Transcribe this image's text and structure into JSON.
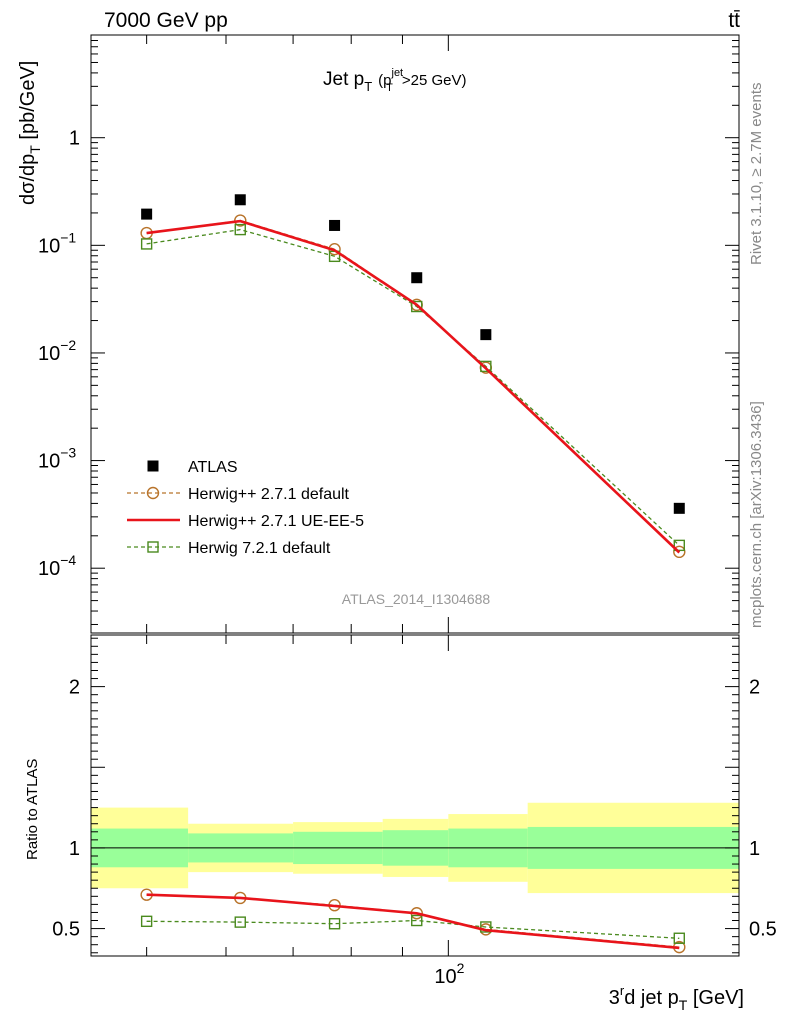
{
  "header": {
    "left": "7000 GeV pp",
    "right": "tt̄"
  },
  "side": {
    "rivet": "Rivet 3.1.10, ≥ 2.7M events",
    "mcplots": "mcplots.cern.ch [arXiv:1306.3436]"
  },
  "watermark": "ATLAS_2014_I1304688",
  "colors": {
    "data": "#000000",
    "herwig_default": "#b8732a",
    "herwig_ueee5": "#e8141b",
    "herwig72": "#4a8a1e",
    "band_inner": "#99ff99",
    "band_outer": "#ffff99"
  },
  "chart_data": [
    {
      "type": "scatter",
      "panel": "main",
      "title": "Jet p_T (p_T^jet>25 GeV)",
      "title_parts": {
        "main": "Jet p",
        "sub": "T",
        "paren_open": "(p",
        "sup": "jet",
        "sub2": "T",
        "rest": ">25 GeV)"
      },
      "ylabel": "dσ/dp_T [pb/GeV]",
      "ylabel_parts": {
        "main": "dσ/dp",
        "sub": "T",
        "rest": " [pb/GeV]"
      },
      "xscale": "log",
      "yscale": "log",
      "xlim": [
        44,
        195
      ],
      "ylim": [
        2.5e-05,
        9
      ],
      "yticks": [
        {
          "value": 1,
          "label": "1"
        },
        {
          "value": 0.1,
          "label": "10",
          "exp": "−1"
        },
        {
          "value": 0.01,
          "label": "10",
          "exp": "−2"
        },
        {
          "value": 0.001,
          "label": "10",
          "exp": "−3"
        },
        {
          "value": 0.0001,
          "label": "10",
          "exp": "−4"
        }
      ],
      "legend_position": "bottom-left",
      "series": [
        {
          "name": "ATLAS",
          "style": "data",
          "x": [
            50,
            62,
            77,
            93,
            109,
            170
          ],
          "y": [
            0.195,
            0.265,
            0.153,
            0.05,
            0.0148,
            0.00036
          ]
        },
        {
          "name": "Herwig++ 2.7.1 default",
          "style": "dashed-circle",
          "x": [
            50,
            62,
            77,
            93,
            109,
            170
          ],
          "y": [
            0.13,
            0.17,
            0.092,
            0.028,
            0.0073,
            0.000142
          ]
        },
        {
          "name": "Herwig++ 2.7.1 UE-EE-5",
          "style": "solid",
          "x": [
            50,
            62,
            77,
            93,
            109,
            170
          ],
          "y": [
            0.13,
            0.168,
            0.09,
            0.028,
            0.0072,
            0.00014
          ]
        },
        {
          "name": "Herwig 7.2.1 default",
          "style": "dashed-square",
          "x": [
            50,
            62,
            77,
            93,
            109,
            170
          ],
          "y": [
            0.103,
            0.14,
            0.079,
            0.027,
            0.0075,
            0.000163
          ]
        }
      ]
    },
    {
      "type": "line",
      "panel": "ratio",
      "ylabel": "Ratio to ATLAS",
      "xlabel": "3^rd jet p_T [GeV]",
      "xlabel_parts": {
        "pre": "3",
        "sup": "r",
        "mid": "d jet p",
        "sub": "T",
        "rest": " [GeV]"
      },
      "xscale": "log",
      "xlim": [
        44,
        195
      ],
      "ylim": [
        0.33,
        2.32
      ],
      "yticks": [
        {
          "value": 0.5,
          "label": "0.5"
        },
        {
          "value": 1,
          "label": "1"
        },
        {
          "value": 2,
          "label": "2"
        }
      ],
      "xticks": [
        {
          "value": 100,
          "label": "10",
          "exp": "2"
        }
      ],
      "bands": [
        {
          "x0": 44,
          "x1": 55,
          "inner": [
            0.88,
            1.12
          ],
          "outer": [
            0.75,
            1.25
          ]
        },
        {
          "x0": 55,
          "x1": 70,
          "inner": [
            0.91,
            1.09
          ],
          "outer": [
            0.85,
            1.15
          ]
        },
        {
          "x0": 70,
          "x1": 86,
          "inner": [
            0.9,
            1.1
          ],
          "outer": [
            0.84,
            1.16
          ]
        },
        {
          "x0": 86,
          "x1": 100,
          "inner": [
            0.89,
            1.11
          ],
          "outer": [
            0.82,
            1.18
          ]
        },
        {
          "x0": 100,
          "x1": 120,
          "inner": [
            0.88,
            1.12
          ],
          "outer": [
            0.79,
            1.21
          ]
        },
        {
          "x0": 120,
          "x1": 195,
          "inner": [
            0.87,
            1.13
          ],
          "outer": [
            0.72,
            1.28
          ]
        }
      ],
      "series": [
        {
          "name": "Herwig++ 2.7.1 default",
          "style": "dashed-circle",
          "x": [
            50,
            62,
            77,
            93,
            109,
            170
          ],
          "y": [
            0.71,
            0.69,
            0.645,
            0.595,
            0.495,
            0.385
          ]
        },
        {
          "name": "Herwig++ 2.7.1 UE-EE-5",
          "style": "solid",
          "x": [
            50,
            62,
            77,
            93,
            109,
            170
          ],
          "y": [
            0.71,
            0.69,
            0.64,
            0.595,
            0.49,
            0.38
          ]
        },
        {
          "name": "Herwig 7.2.1 default",
          "style": "dashed-square",
          "x": [
            50,
            62,
            77,
            93,
            109,
            170
          ],
          "y": [
            0.545,
            0.54,
            0.53,
            0.55,
            0.51,
            0.44
          ]
        }
      ]
    }
  ]
}
